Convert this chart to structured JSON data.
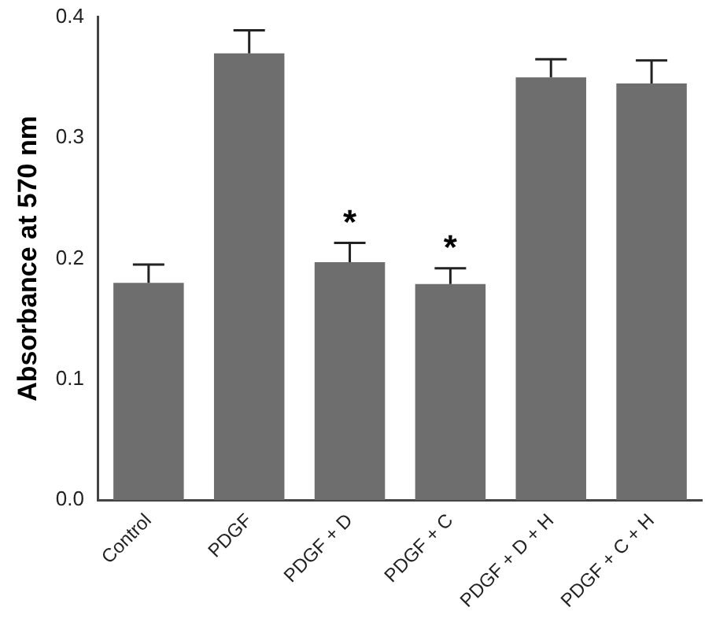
{
  "chart_data": {
    "type": "bar",
    "ylabel": "Absorbance at 570 nm",
    "categories": [
      "Control",
      "PDGF",
      "PDGF + D",
      "PDGF + C",
      "PDGF + D + H",
      "PDGF + C + H"
    ],
    "values": [
      0.18,
      0.37,
      0.197,
      0.179,
      0.35,
      0.345
    ],
    "errors": [
      0.015,
      0.019,
      0.016,
      0.013,
      0.015,
      0.019
    ],
    "color": "#6e6e6e",
    "ylim": [
      0,
      0.4
    ],
    "yticks": [
      {
        "value": 0,
        "label": "0.0"
      },
      {
        "value": 0.1,
        "label": "0.1"
      },
      {
        "value": 0.2,
        "label": "0.2"
      },
      {
        "value": 0.3,
        "label": "0.3"
      },
      {
        "value": 0.4,
        "label": "0.4"
      }
    ],
    "annotations": [
      {
        "text": "*",
        "x": "PDGF + D",
        "y": 0.213
      },
      {
        "text": "*",
        "x": "PDGF + C",
        "y": 0.192
      }
    ],
    "grid": false,
    "legend": false
  }
}
